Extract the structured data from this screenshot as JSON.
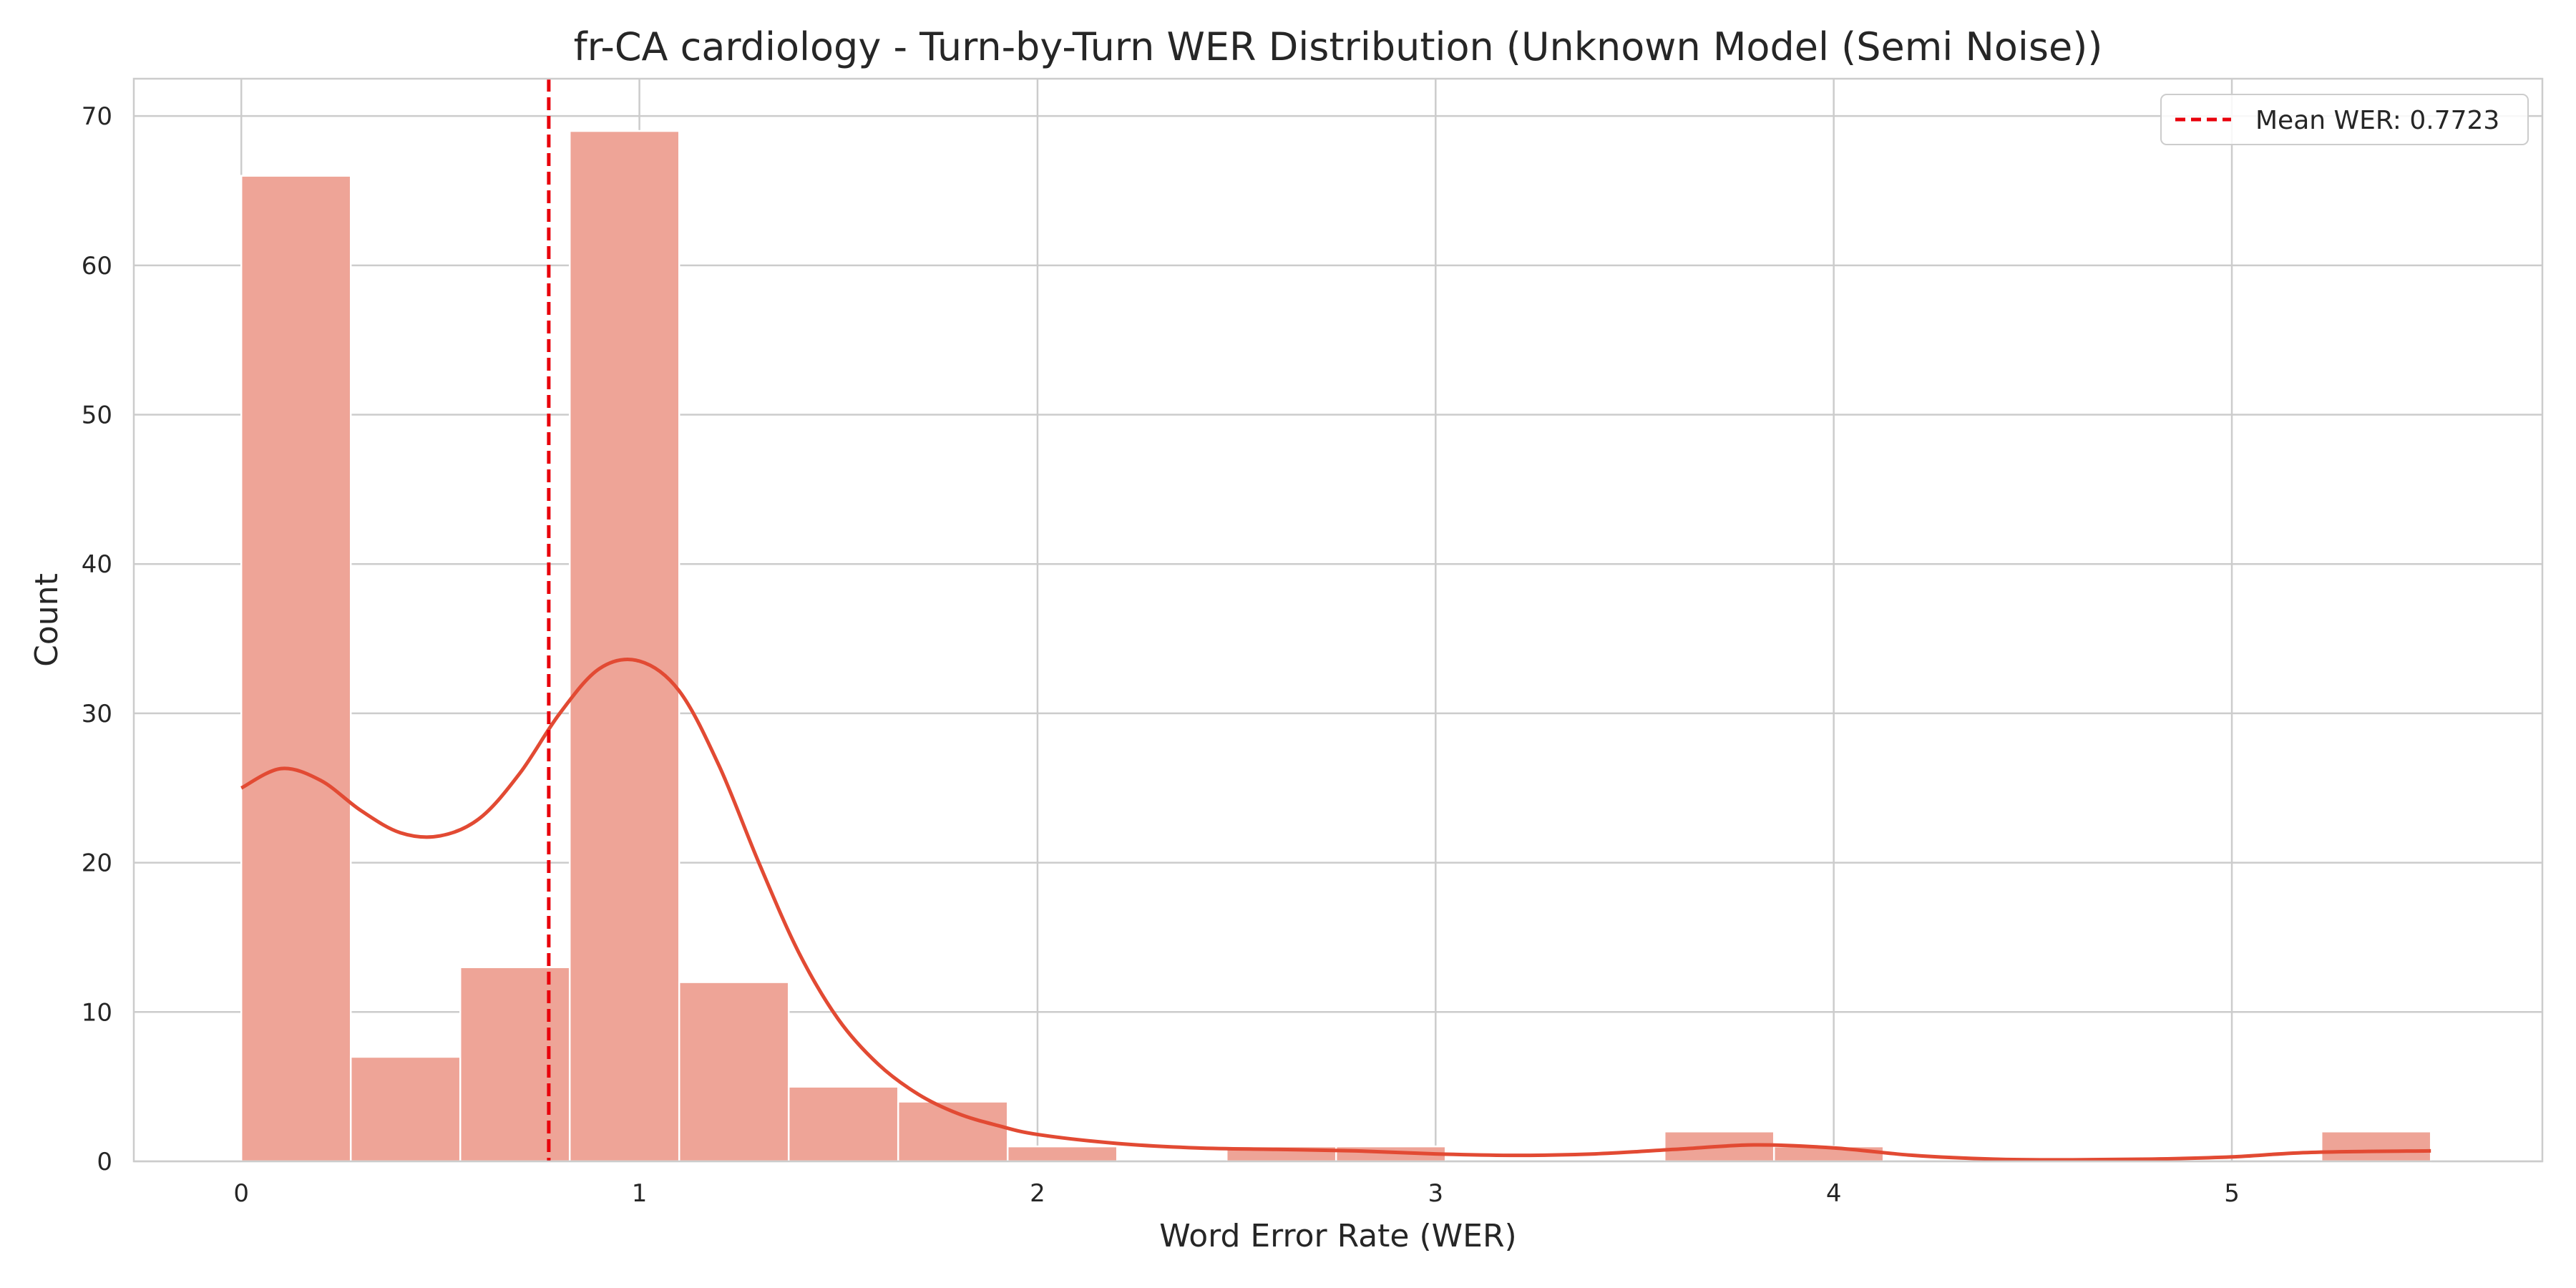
{
  "chart_data": {
    "type": "bar",
    "title": "fr-CA cardiology - Turn-by-Turn WER Distribution (Unknown Model (Semi Noise))",
    "xlabel": "Word Error Rate (WER)",
    "ylabel": "Count",
    "xlim": [
      -0.27,
      5.78
    ],
    "ylim": [
      0,
      72.5
    ],
    "xticks": [
      0,
      1,
      2,
      3,
      4,
      5
    ],
    "yticks": [
      0,
      10,
      20,
      30,
      40,
      50,
      60,
      70
    ],
    "grid": true,
    "bins": [
      {
        "x0": 0.0,
        "x1": 0.275,
        "count": 66
      },
      {
        "x0": 0.275,
        "x1": 0.55,
        "count": 7
      },
      {
        "x0": 0.55,
        "x1": 0.825,
        "count": 13
      },
      {
        "x0": 0.825,
        "x1": 1.1,
        "count": 69
      },
      {
        "x0": 1.1,
        "x1": 1.375,
        "count": 12
      },
      {
        "x0": 1.375,
        "x1": 1.65,
        "count": 5
      },
      {
        "x0": 1.65,
        "x1": 1.925,
        "count": 4
      },
      {
        "x0": 1.925,
        "x1": 2.2,
        "count": 1
      },
      {
        "x0": 2.2,
        "x1": 2.475,
        "count": 0
      },
      {
        "x0": 2.475,
        "x1": 2.75,
        "count": 1
      },
      {
        "x0": 2.75,
        "x1": 3.025,
        "count": 1
      },
      {
        "x0": 3.025,
        "x1": 3.3,
        "count": 0
      },
      {
        "x0": 3.3,
        "x1": 3.575,
        "count": 0
      },
      {
        "x0": 3.575,
        "x1": 3.85,
        "count": 2
      },
      {
        "x0": 3.85,
        "x1": 4.125,
        "count": 1
      },
      {
        "x0": 4.125,
        "x1": 4.4,
        "count": 0
      },
      {
        "x0": 4.4,
        "x1": 4.675,
        "count": 0
      },
      {
        "x0": 4.675,
        "x1": 4.95,
        "count": 0
      },
      {
        "x0": 4.95,
        "x1": 5.225,
        "count": 0
      },
      {
        "x0": 5.225,
        "x1": 5.5,
        "count": 2
      }
    ],
    "kde": {
      "x": [
        0.0,
        0.1,
        0.2,
        0.3,
        0.4,
        0.5,
        0.6,
        0.7,
        0.8,
        0.9,
        1.0,
        1.1,
        1.2,
        1.3,
        1.4,
        1.5,
        1.6,
        1.7,
        1.8,
        1.9,
        2.0,
        2.2,
        2.4,
        2.6,
        2.8,
        3.0,
        3.2,
        3.4,
        3.6,
        3.8,
        4.0,
        4.2,
        4.4,
        4.6,
        4.8,
        5.0,
        5.2,
        5.5
      ],
      "y": [
        25,
        26.3,
        25.5,
        23.5,
        22.0,
        21.8,
        23.0,
        26.0,
        30.0,
        33.0,
        33.5,
        31.5,
        26.5,
        20.0,
        14.0,
        9.5,
        6.5,
        4.5,
        3.2,
        2.4,
        1.8,
        1.2,
        0.9,
        0.8,
        0.7,
        0.5,
        0.4,
        0.5,
        0.8,
        1.1,
        0.9,
        0.4,
        0.15,
        0.1,
        0.15,
        0.3,
        0.6,
        0.7
      ]
    },
    "mean_line": {
      "value": 0.7723,
      "label": "Mean WER: 0.7723",
      "color": "#e8000b"
    },
    "legend_position": "top-right",
    "bar_color": "#eea497",
    "kde_color": "#e24a33"
  }
}
